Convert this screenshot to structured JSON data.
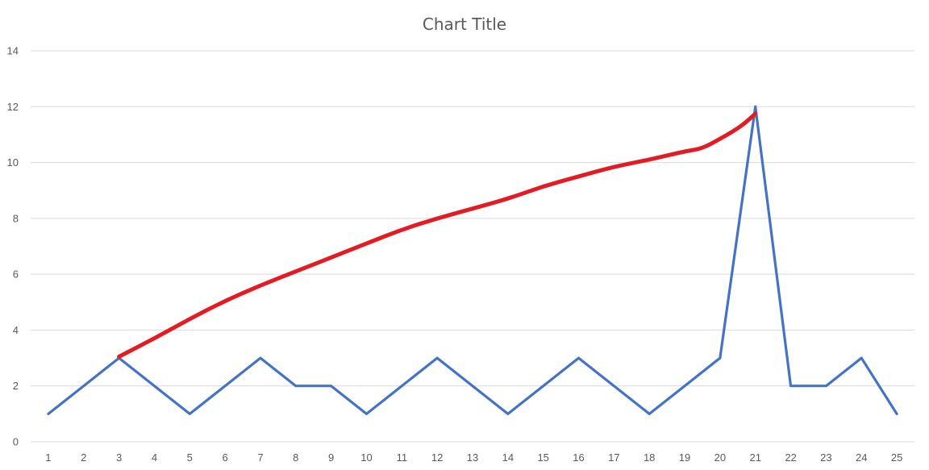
{
  "chart_data": {
    "type": "line",
    "title": "Chart Title",
    "xlabel": "",
    "ylabel": "",
    "categories": [
      "1",
      "2",
      "3",
      "4",
      "5",
      "6",
      "7",
      "8",
      "9",
      "10",
      "11",
      "12",
      "13",
      "14",
      "15",
      "16",
      "17",
      "18",
      "19",
      "20",
      "21",
      "22",
      "23",
      "24",
      "25"
    ],
    "ylim": [
      0,
      14
    ],
    "yticks": [
      0,
      2,
      4,
      6,
      8,
      10,
      12,
      14
    ],
    "grid": true,
    "legend": "none",
    "series": [
      {
        "color": "#4472c4",
        "values": [
          1,
          2,
          3,
          2,
          1,
          2,
          3,
          2,
          2,
          1,
          2,
          3,
          2,
          1,
          2,
          3,
          2,
          1,
          2,
          3,
          12,
          2,
          2,
          3,
          1
        ]
      }
    ],
    "annotations": [
      {
        "type": "freehand-stroke",
        "color": "#e31b23",
        "points": [
          [
            3,
            3.05
          ],
          [
            4,
            3.7
          ],
          [
            5,
            4.4
          ],
          [
            6,
            5.05
          ],
          [
            7,
            5.6
          ],
          [
            8,
            6.1
          ],
          [
            9,
            6.6
          ],
          [
            10,
            7.1
          ],
          [
            11,
            7.6
          ],
          [
            12,
            8.0
          ],
          [
            13,
            8.35
          ],
          [
            14,
            8.7
          ],
          [
            15,
            9.15
          ],
          [
            16,
            9.5
          ],
          [
            17,
            9.85
          ],
          [
            18,
            10.1
          ],
          [
            19,
            10.4
          ],
          [
            19.5,
            10.5
          ],
          [
            20,
            10.85
          ],
          [
            20.35,
            11.1
          ],
          [
            20.7,
            11.4
          ],
          [
            21,
            11.75
          ]
        ]
      }
    ]
  }
}
